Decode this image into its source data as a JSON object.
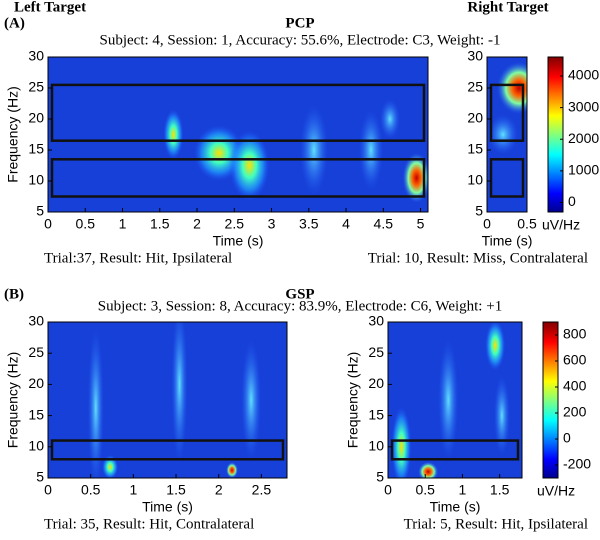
{
  "headings": {
    "left": "Left Target",
    "right": "Right Target"
  },
  "panels": [
    {
      "label": "(A)",
      "title": "PCP",
      "subtitle": "Subject: 4, Session: 1, Accuracy: 55.6%, Electrode: C3, Weight: -1"
    },
    {
      "label": "(B)",
      "title": "GSP",
      "subtitle": "Subject: 3, Session: 8, Accuracy: 83.9%, Electrode: C6, Weight: +1"
    }
  ],
  "chart_data": [
    {
      "type": "heatmap",
      "x_label": "Time (s)",
      "y_label": "Frequency (Hz)",
      "caption": "Trial:37, Result: Hit, Ipsilateral",
      "xlim": [
        0,
        5.1
      ],
      "ylim": [
        5,
        30
      ],
      "xticks": [
        0,
        0.5,
        1,
        1.5,
        2,
        2.5,
        3,
        3.5,
        4,
        4.5,
        5
      ],
      "yticks": [
        5,
        10,
        15,
        20,
        25,
        30
      ],
      "boxes": [
        [
          7.5,
          13.5
        ],
        [
          16.5,
          25.5
        ]
      ]
    },
    {
      "type": "heatmap",
      "x_label": "Time (s)",
      "caption": "Trial: 10, Result: Miss, Contralateral",
      "xlim": [
        0,
        0.5
      ],
      "ylim": [
        5,
        30
      ],
      "xticks": [
        0,
        0.5
      ],
      "yticks": [
        5,
        10,
        15,
        20,
        25,
        30
      ],
      "boxes": [
        [
          7.5,
          13.5
        ],
        [
          16.5,
          25.5
        ]
      ]
    },
    {
      "type": "colorbar",
      "label": "uV/Hz",
      "clim": [
        -300,
        4600
      ],
      "cticks": [
        0,
        1000,
        2000,
        3000,
        4000
      ]
    },
    {
      "type": "heatmap",
      "x_label": "Time (s)",
      "y_label": "Frequency (Hz)",
      "caption": "Trial: 35, Result: Hit, Contralateral",
      "xlim": [
        0,
        2.8
      ],
      "ylim": [
        5,
        30
      ],
      "xticks": [
        0,
        0.5,
        1,
        1.5,
        2,
        2.5
      ],
      "yticks": [
        5,
        10,
        15,
        20,
        25,
        30
      ],
      "boxes": [
        [
          8,
          11
        ]
      ]
    },
    {
      "type": "heatmap",
      "x_label": "Time (s)",
      "y_label": "Frequency (Hz)",
      "caption": "Trial: 5, Result: Hit, Ipsilateral",
      "xlim": [
        0,
        1.8
      ],
      "ylim": [
        5,
        30
      ],
      "xticks": [
        0,
        0.5,
        1,
        1.5
      ],
      "yticks": [
        5,
        10,
        15,
        20,
        25,
        30
      ],
      "boxes": [
        [
          8,
          11
        ]
      ]
    },
    {
      "type": "colorbar",
      "label": "uV/Hz",
      "clim": [
        -300,
        900
      ],
      "cticks": [
        -200,
        0,
        200,
        400,
        600,
        800
      ]
    }
  ]
}
